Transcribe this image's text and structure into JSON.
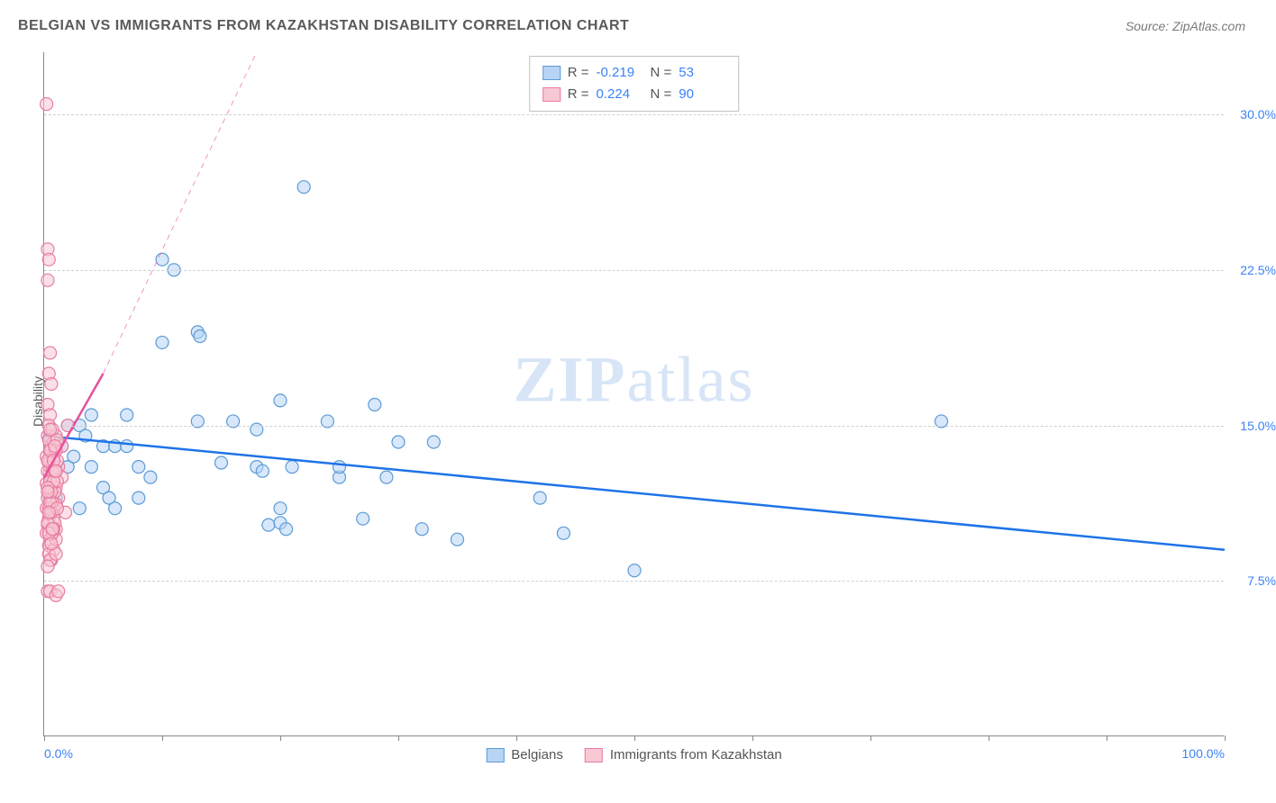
{
  "title": "BELGIAN VS IMMIGRANTS FROM KAZAKHSTAN DISABILITY CORRELATION CHART",
  "source": "Source: ZipAtlas.com",
  "ylabel": "Disability",
  "watermark_bold": "ZIP",
  "watermark_light": "atlas",
  "chart": {
    "type": "scatter",
    "xlim": [
      0,
      100
    ],
    "ylim": [
      0,
      33
    ],
    "x_ticks": [
      0,
      10,
      20,
      30,
      40,
      50,
      60,
      70,
      80,
      90,
      100
    ],
    "x_tick_labels": {
      "0": "0.0%",
      "100": "100.0%"
    },
    "y_ticks": [
      7.5,
      15.0,
      22.5,
      30.0
    ],
    "y_tick_labels": [
      "7.5%",
      "15.0%",
      "22.5%",
      "30.0%"
    ],
    "background_color": "#ffffff",
    "grid_color": "#d0d0d0",
    "axis_color": "#888888",
    "label_color": "#3b82f6",
    "marker_radius": 7,
    "marker_opacity": 0.55,
    "series": [
      {
        "name": "Belgians",
        "color_fill": "#b8d4f5",
        "color_stroke": "#5b9bd5",
        "R": "-0.219",
        "N": "53",
        "trend": {
          "x1": 0,
          "y1": 14.5,
          "x2": 100,
          "y2": 9.0,
          "width": 2.5,
          "color": "#1e73e8"
        },
        "points": [
          [
            0.5,
            14.5
          ],
          [
            1,
            11.5
          ],
          [
            2,
            15.0
          ],
          [
            2,
            13.0
          ],
          [
            3,
            15.0
          ],
          [
            3,
            11.0
          ],
          [
            3.5,
            14.5
          ],
          [
            4,
            13.0
          ],
          [
            5,
            12.0
          ],
          [
            5,
            14.0
          ],
          [
            5.5,
            11.5
          ],
          [
            22,
            26.5
          ],
          [
            6,
            14.0
          ],
          [
            7,
            15.5
          ],
          [
            7,
            14.0
          ],
          [
            8,
            13.0
          ],
          [
            8,
            11.5
          ],
          [
            10,
            19.0
          ],
          [
            10,
            23.0
          ],
          [
            11,
            22.5
          ],
          [
            13,
            15.2
          ],
          [
            13,
            19.5
          ],
          [
            13.2,
            19.3
          ],
          [
            15,
            13.2
          ],
          [
            16,
            15.2
          ],
          [
            18,
            14.8
          ],
          [
            18,
            13.0
          ],
          [
            18.5,
            12.8
          ],
          [
            19,
            10.2
          ],
          [
            20,
            11.0
          ],
          [
            20,
            16.2
          ],
          [
            20,
            10.3
          ],
          [
            20.5,
            10.0
          ],
          [
            21,
            13.0
          ],
          [
            24,
            15.2
          ],
          [
            25,
            12.5
          ],
          [
            25,
            13.0
          ],
          [
            27,
            10.5
          ],
          [
            28,
            16.0
          ],
          [
            29,
            12.5
          ],
          [
            30,
            14.2
          ],
          [
            32,
            10.0
          ],
          [
            33,
            14.2
          ],
          [
            35,
            9.5
          ],
          [
            42,
            11.5
          ],
          [
            44,
            9.8
          ],
          [
            50,
            8.0
          ],
          [
            76,
            15.2
          ],
          [
            6,
            11.0
          ],
          [
            4,
            15.5
          ],
          [
            2.5,
            13.5
          ],
          [
            1.5,
            14.0
          ],
          [
            9,
            12.5
          ]
        ]
      },
      {
        "name": "Immigrants from Kazakhstan",
        "color_fill": "#f8c8d4",
        "color_stroke": "#e87ba0",
        "R": "0.224",
        "N": "90",
        "trend": {
          "x1": 0,
          "y1": 12.5,
          "x2": 5,
          "y2": 17.5,
          "width": 2.5,
          "color": "#e8519c",
          "extend_x": 18,
          "extend_y": 33,
          "dash": "6,5"
        },
        "points": [
          [
            0.2,
            30.5
          ],
          [
            0.3,
            23.5
          ],
          [
            0.4,
            23.0
          ],
          [
            0.3,
            22.0
          ],
          [
            0.5,
            18.5
          ],
          [
            0.4,
            17.5
          ],
          [
            0.6,
            17.0
          ],
          [
            0.3,
            16.0
          ],
          [
            0.5,
            15.5
          ],
          [
            0.4,
            15.0
          ],
          [
            0.3,
            14.5
          ],
          [
            0.6,
            14.0
          ],
          [
            0.2,
            13.5
          ],
          [
            0.5,
            13.0
          ],
          [
            0.4,
            13.2
          ],
          [
            0.3,
            12.8
          ],
          [
            0.6,
            12.5
          ],
          [
            0.2,
            12.2
          ],
          [
            0.5,
            12.0
          ],
          [
            0.4,
            11.8
          ],
          [
            0.3,
            11.5
          ],
          [
            0.6,
            11.3
          ],
          [
            0.2,
            11.0
          ],
          [
            0.5,
            10.8
          ],
          [
            0.4,
            10.5
          ],
          [
            0.3,
            10.2
          ],
          [
            0.6,
            10.0
          ],
          [
            0.2,
            9.8
          ],
          [
            0.5,
            9.5
          ],
          [
            0.4,
            9.2
          ],
          [
            0.3,
            7.0
          ],
          [
            0.5,
            7.0
          ],
          [
            1.0,
            6.8
          ],
          [
            1.2,
            7.0
          ],
          [
            0.8,
            11.0
          ],
          [
            1.0,
            12.0
          ],
          [
            1.2,
            13.0
          ],
          [
            0.8,
            13.5
          ],
          [
            1.0,
            14.5
          ],
          [
            1.5,
            14.0
          ],
          [
            1.2,
            11.5
          ],
          [
            0.8,
            10.5
          ],
          [
            1.5,
            12.5
          ],
          [
            2.0,
            15.0
          ],
          [
            1.8,
            10.8
          ],
          [
            1.0,
            10.0
          ],
          [
            0.7,
            14.8
          ],
          [
            0.9,
            13.8
          ],
          [
            0.6,
            8.5
          ],
          [
            0.8,
            9.0
          ],
          [
            1.0,
            9.5
          ],
          [
            0.4,
            8.8
          ],
          [
            0.5,
            8.5
          ],
          [
            0.3,
            8.2
          ],
          [
            0.7,
            12.8
          ],
          [
            0.9,
            11.8
          ],
          [
            1.1,
            13.3
          ],
          [
            0.6,
            13.8
          ],
          [
            0.8,
            14.2
          ],
          [
            1.0,
            11.2
          ],
          [
            0.4,
            11.0
          ],
          [
            0.5,
            12.3
          ],
          [
            0.3,
            13.3
          ],
          [
            0.7,
            11.3
          ],
          [
            0.9,
            10.3
          ],
          [
            1.1,
            12.3
          ],
          [
            0.6,
            10.8
          ],
          [
            0.8,
            12.3
          ],
          [
            1.0,
            13.8
          ],
          [
            0.4,
            14.3
          ],
          [
            0.5,
            11.3
          ],
          [
            0.3,
            10.3
          ],
          [
            0.7,
            9.8
          ],
          [
            0.9,
            12.8
          ],
          [
            1.1,
            14.3
          ],
          [
            0.6,
            11.8
          ],
          [
            0.8,
            10.0
          ],
          [
            1.0,
            8.8
          ],
          [
            0.4,
            9.8
          ],
          [
            0.5,
            13.8
          ],
          [
            0.3,
            12.0
          ],
          [
            0.7,
            10.0
          ],
          [
            0.9,
            14.0
          ],
          [
            1.1,
            11.0
          ],
          [
            0.6,
            9.3
          ],
          [
            0.8,
            13.3
          ],
          [
            1.0,
            12.8
          ],
          [
            0.4,
            10.8
          ],
          [
            0.5,
            14.8
          ],
          [
            0.3,
            11.8
          ]
        ]
      }
    ]
  },
  "legend_labels": {
    "R": "R =",
    "N": "N ="
  },
  "bottom_legend": [
    {
      "label": "Belgians",
      "fill": "#b8d4f5",
      "stroke": "#5b9bd5"
    },
    {
      "label": "Immigrants from Kazakhstan",
      "fill": "#f8c8d4",
      "stroke": "#e87ba0"
    }
  ]
}
